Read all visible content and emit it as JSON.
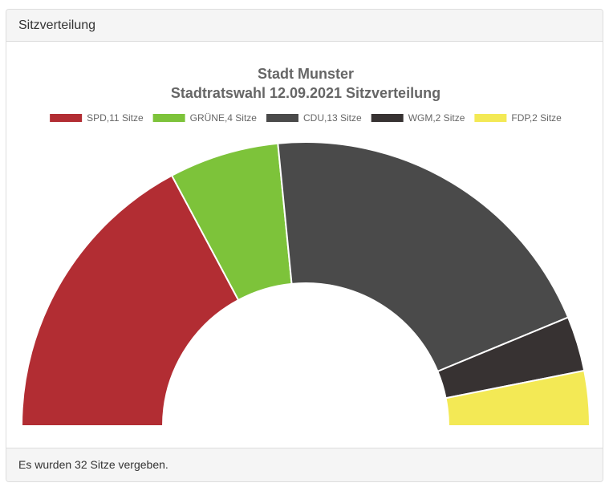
{
  "panel": {
    "heading": "Sitzverteilung",
    "footer": "Es wurden 32 Sitze vergeben."
  },
  "chart_data": {
    "type": "pie",
    "subtype": "semi-doughnut",
    "title": "Stadt Munster",
    "subtitle": "Stadtratswahl 12.09.2021 Sitzverteilung",
    "legend_position": "top",
    "categories": [
      "SPD,11 Sitze",
      "GRÜNE,4 Sitze",
      "CDU,13 Sitze",
      "WGM,2 Sitze",
      "FDP,2 Sitze"
    ],
    "values": [
      11,
      4,
      13,
      2,
      2
    ],
    "colors": [
      "#b22d33",
      "#7dc33a",
      "#4a4a4a",
      "#373232",
      "#f3e955"
    ]
  }
}
